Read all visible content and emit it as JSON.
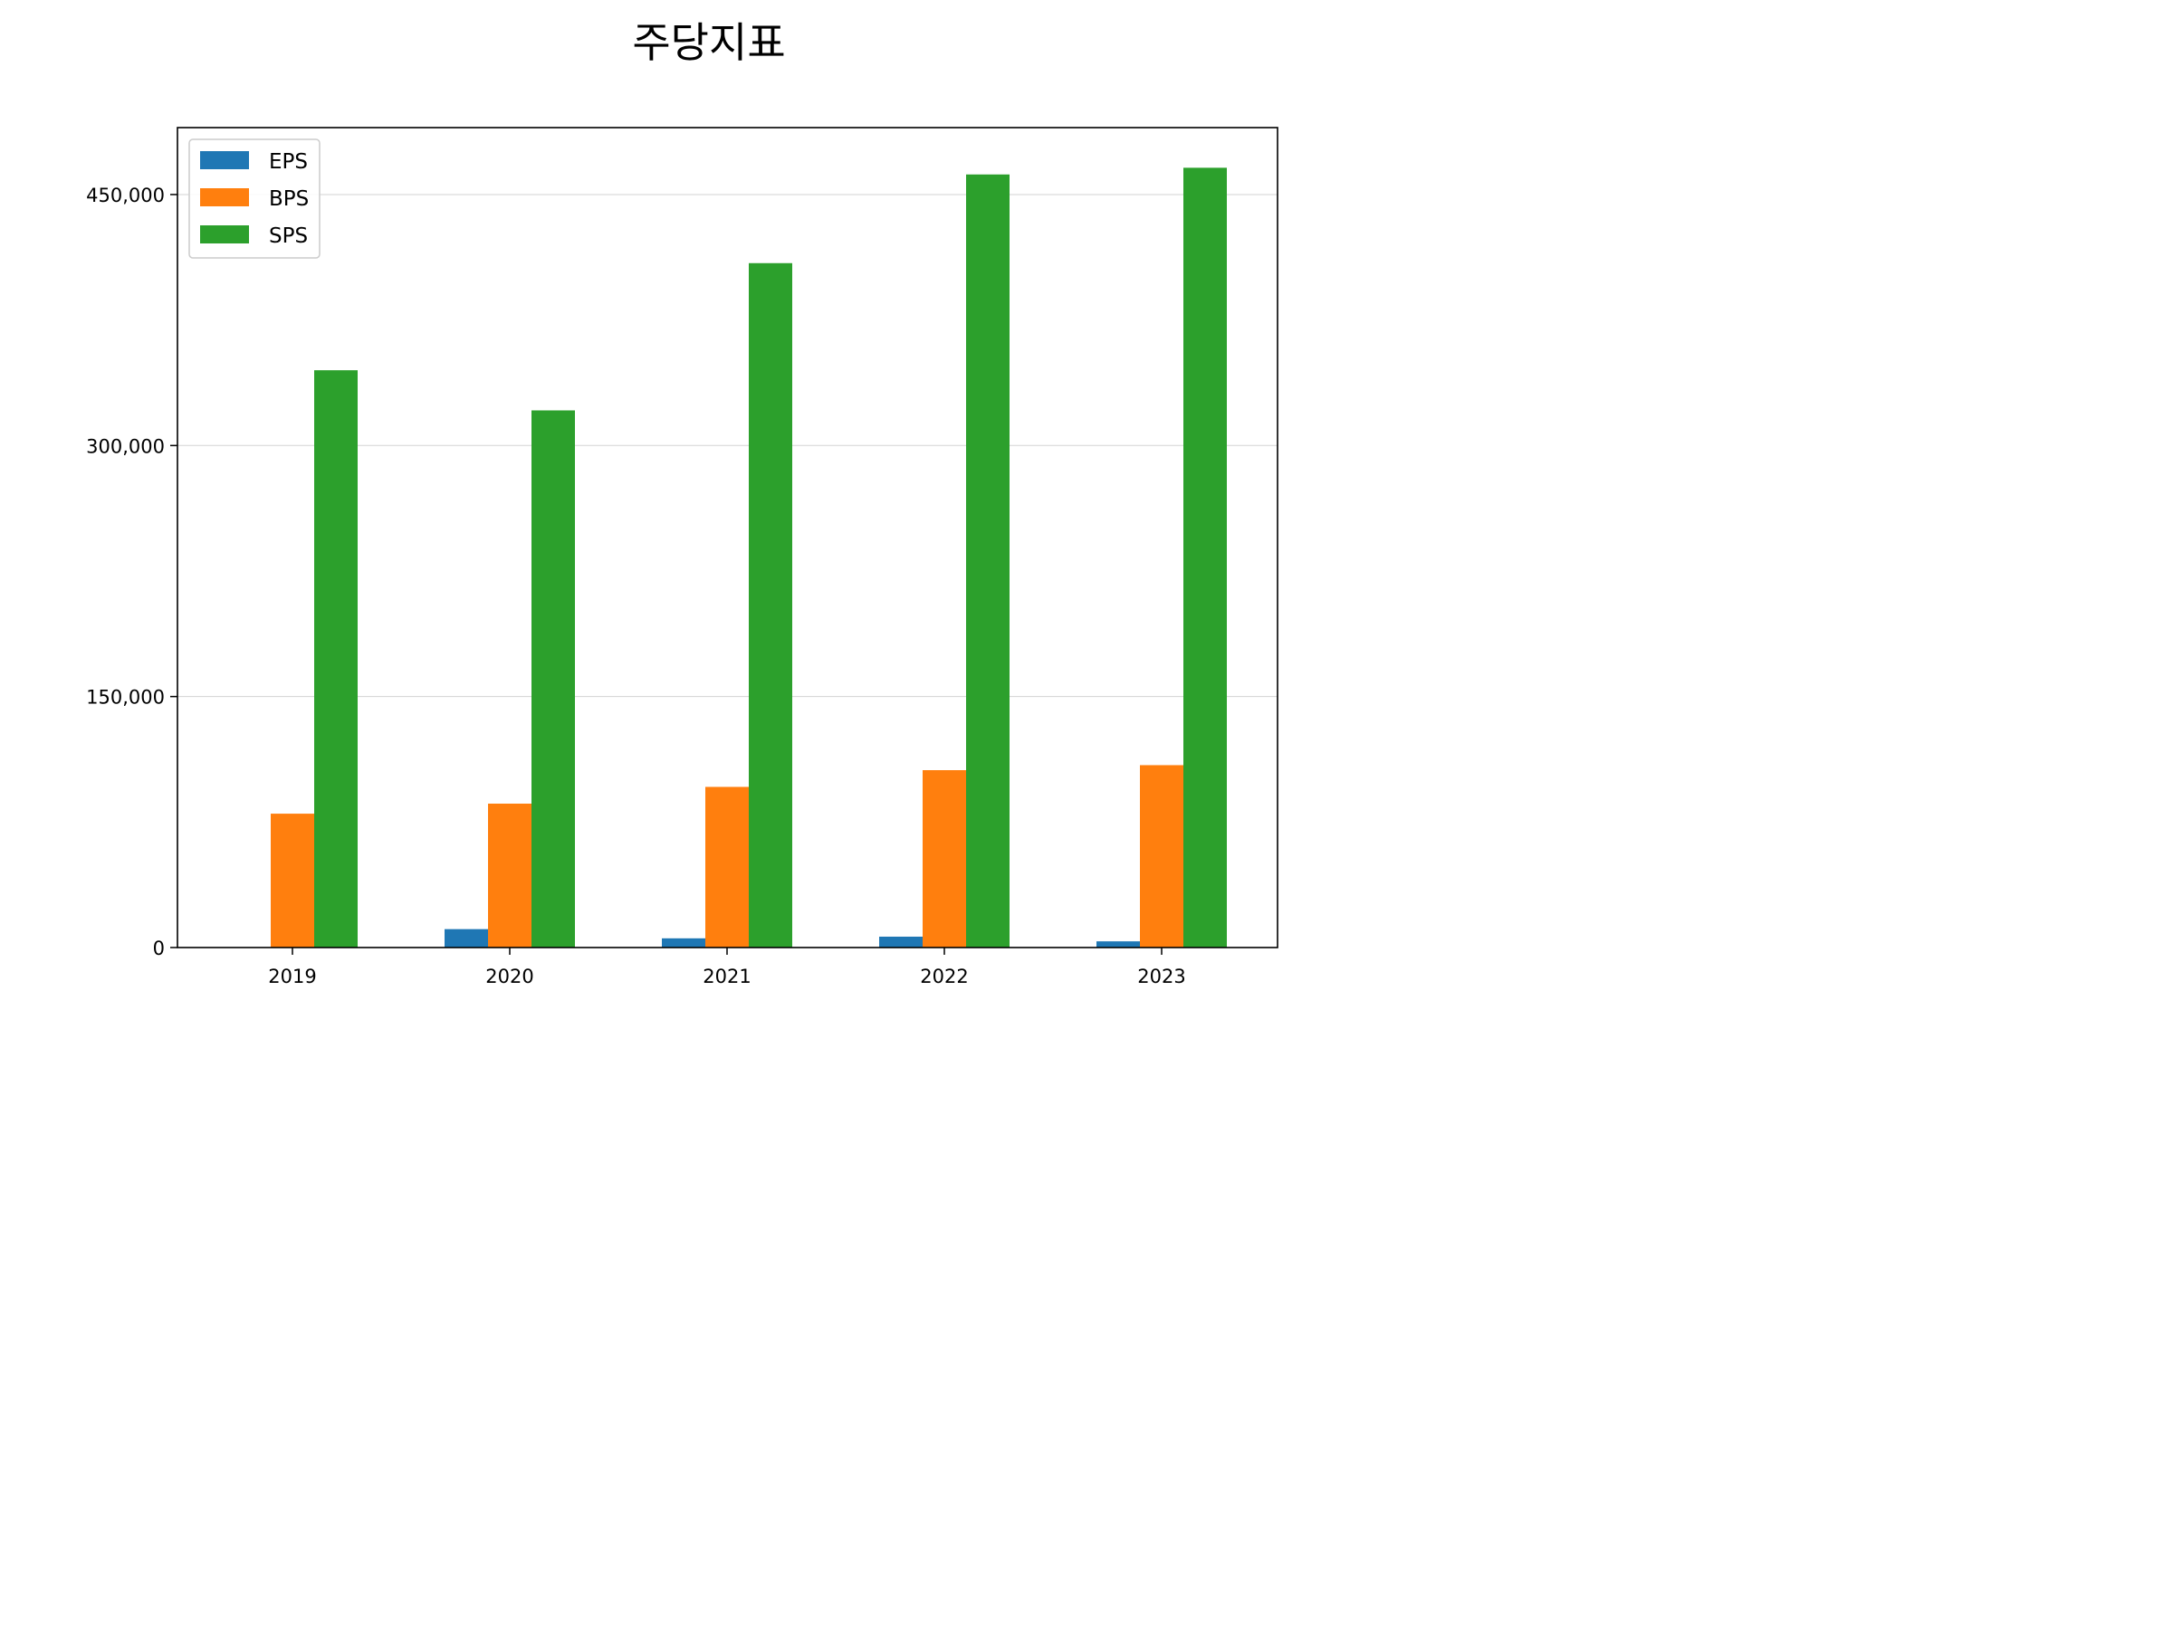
{
  "chart_data": {
    "type": "bar",
    "title": "주당지표",
    "xlabel": "",
    "ylabel": "",
    "categories": [
      "2019",
      "2020",
      "2021",
      "2022",
      "2023"
    ],
    "series": [
      {
        "name": "EPS",
        "color": "#1f77b4",
        "values": [
          0,
          11000,
          5500,
          6500,
          3700
        ]
      },
      {
        "name": "BPS",
        "color": "#ff7f0e",
        "values": [
          80000,
          86000,
          96000,
          106000,
          109000
        ]
      },
      {
        "name": "SPS",
        "color": "#2ca02c",
        "values": [
          345000,
          321000,
          409000,
          462000,
          466000
        ]
      }
    ],
    "ylim": [
      0,
      490000
    ],
    "yticks": [
      0,
      150000,
      300000,
      450000
    ],
    "ytick_labels": [
      "0",
      "150,000",
      "300,000",
      "450,000"
    ],
    "grid": "horizontal",
    "legend": "top-left"
  }
}
